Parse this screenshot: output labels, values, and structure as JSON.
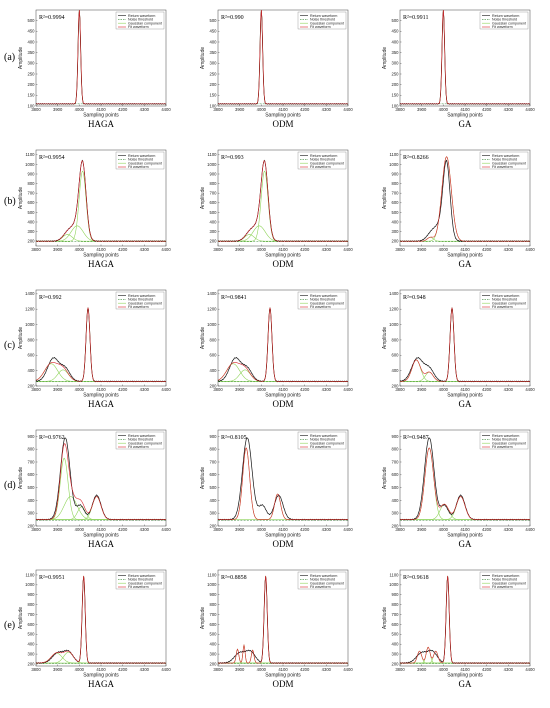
{
  "figure": {
    "rows": [
      "(a)",
      "(b)",
      "(c)",
      "(d)",
      "(e)"
    ],
    "methods": [
      "HAGA",
      "ODM",
      "GA"
    ],
    "xlabel": "Sampling points",
    "ylabel": "Amplitude",
    "legend": [
      "Return waveform",
      "Noise threshold",
      "Gaussian component",
      "Fit waveform"
    ],
    "colors": {
      "return": "#111111",
      "noise": "#3b8a3b",
      "gaussian": "#8fd45a",
      "fit": "#d9262c"
    }
  },
  "chart_data": [
    {
      "type": "line",
      "row": "(a)",
      "method": "HAGA",
      "r2": "R²=0.9994",
      "xlim": [
        3800,
        4400
      ],
      "xticks": [
        3800,
        3900,
        4000,
        4100,
        4200,
        4300,
        4400
      ],
      "ylim": [
        100,
        550
      ],
      "yticks": [
        100,
        150,
        200,
        250,
        300,
        350,
        400,
        450,
        500
      ],
      "noise": 110,
      "base": 110,
      "peaks": [
        {
          "mu": 4000,
          "amp": 440,
          "sigma": 6
        }
      ],
      "fit_peaks": [
        {
          "mu": 4000,
          "amp": 440,
          "sigma": 6
        }
      ]
    },
    {
      "type": "line",
      "row": "(a)",
      "method": "ODM",
      "r2": "R²=0.990",
      "xlim": [
        3800,
        4400
      ],
      "xticks": [
        3800,
        3900,
        4000,
        4100,
        4200,
        4300,
        4400
      ],
      "ylim": [
        100,
        550
      ],
      "yticks": [
        100,
        150,
        200,
        250,
        300,
        350,
        400,
        450,
        500
      ],
      "noise": 110,
      "base": 110,
      "peaks": [
        {
          "mu": 4000,
          "amp": 440,
          "sigma": 6
        }
      ],
      "fit_peaks": [
        {
          "mu": 4000,
          "amp": 440,
          "sigma": 6
        }
      ]
    },
    {
      "type": "line",
      "row": "(a)",
      "method": "GA",
      "r2": "R²=0.9911",
      "xlim": [
        3800,
        4400
      ],
      "xticks": [
        3800,
        3900,
        4000,
        4100,
        4200,
        4300,
        4400
      ],
      "ylim": [
        100,
        550
      ],
      "yticks": [
        100,
        150,
        200,
        250,
        300,
        350,
        400,
        450,
        500
      ],
      "noise": 110,
      "base": 110,
      "peaks": [
        {
          "mu": 4000,
          "amp": 440,
          "sigma": 6
        }
      ],
      "fit_peaks": [
        {
          "mu": 4000,
          "amp": 440,
          "sigma": 6
        }
      ]
    },
    {
      "type": "line",
      "row": "(b)",
      "method": "HAGA",
      "r2": "R²=0.9954",
      "xlim": [
        3800,
        4400
      ],
      "xticks": [
        3800,
        3900,
        4000,
        4100,
        4200,
        4300,
        4400
      ],
      "ylim": [
        150,
        1150
      ],
      "yticks": [
        200,
        300,
        400,
        500,
        600,
        700,
        800,
        900,
        1000,
        1100
      ],
      "noise": 195,
      "base": 200,
      "peaks": [
        {
          "mu": 3945,
          "amp": 70,
          "sigma": 22
        },
        {
          "mu": 3990,
          "amp": 160,
          "sigma": 28
        },
        {
          "mu": 4015,
          "amp": 730,
          "sigma": 16
        }
      ],
      "fit_peaks": [
        {
          "mu": 3945,
          "amp": 70,
          "sigma": 22
        },
        {
          "mu": 3990,
          "amp": 160,
          "sigma": 28
        },
        {
          "mu": 4015,
          "amp": 730,
          "sigma": 16
        }
      ]
    },
    {
      "type": "line",
      "row": "(b)",
      "method": "ODM",
      "r2": "R²=0.993",
      "xlim": [
        3800,
        4400
      ],
      "xticks": [
        3800,
        3900,
        4000,
        4100,
        4200,
        4300,
        4400
      ],
      "ylim": [
        150,
        1150
      ],
      "yticks": [
        200,
        300,
        400,
        500,
        600,
        700,
        800,
        900,
        1000,
        1100
      ],
      "noise": 195,
      "base": 200,
      "peaks": [
        {
          "mu": 3945,
          "amp": 70,
          "sigma": 22
        },
        {
          "mu": 3990,
          "amp": 160,
          "sigma": 28
        },
        {
          "mu": 4015,
          "amp": 730,
          "sigma": 16
        }
      ],
      "fit_peaks": [
        {
          "mu": 3945,
          "amp": 70,
          "sigma": 22
        },
        {
          "mu": 3990,
          "amp": 160,
          "sigma": 28
        },
        {
          "mu": 4015,
          "amp": 730,
          "sigma": 16
        }
      ]
    },
    {
      "type": "line",
      "row": "(b)",
      "method": "GA",
      "r2": "R²=0.8266",
      "xlim": [
        3800,
        4400
      ],
      "xticks": [
        3800,
        3900,
        4000,
        4100,
        4200,
        4300,
        4400
      ],
      "ylim": [
        150,
        1150
      ],
      "yticks": [
        200,
        300,
        400,
        500,
        600,
        700,
        800,
        900,
        1000,
        1100
      ],
      "noise": 195,
      "base": 200,
      "peaks": [
        {
          "mu": 3945,
          "amp": 70,
          "sigma": 22
        },
        {
          "mu": 3990,
          "amp": 160,
          "sigma": 28
        },
        {
          "mu": 4015,
          "amp": 730,
          "sigma": 16
        }
      ],
      "fit_peaks": [
        {
          "mu": 3940,
          "amp": 40,
          "sigma": 14
        },
        {
          "mu": 4015,
          "amp": 880,
          "sigma": 22
        }
      ]
    },
    {
      "type": "line",
      "row": "(c)",
      "method": "HAGA",
      "r2": "R²=0.992",
      "xlim": [
        3800,
        4400
      ],
      "xticks": [
        3800,
        3900,
        4000,
        4100,
        4200,
        4300,
        4400
      ],
      "ylim": [
        200,
        1450
      ],
      "yticks": [
        200,
        400,
        600,
        800,
        1000,
        1200,
        1400
      ],
      "noise": 255,
      "base": 260,
      "peaks": [
        {
          "mu": 3880,
          "amp": 300,
          "sigma": 26
        },
        {
          "mu": 3935,
          "amp": 160,
          "sigma": 22
        },
        {
          "mu": 4040,
          "amp": 960,
          "sigma": 9
        }
      ],
      "fit_peaks": [
        {
          "mu": 3870,
          "amp": 230,
          "sigma": 30
        },
        {
          "mu": 3925,
          "amp": 150,
          "sigma": 25
        },
        {
          "mu": 4040,
          "amp": 960,
          "sigma": 9
        }
      ]
    },
    {
      "type": "line",
      "row": "(c)",
      "method": "ODM",
      "r2": "R²=0.9841",
      "xlim": [
        3800,
        4400
      ],
      "xticks": [
        3800,
        3900,
        4000,
        4100,
        4200,
        4300,
        4400
      ],
      "ylim": [
        200,
        1450
      ],
      "yticks": [
        200,
        400,
        600,
        800,
        1000,
        1200,
        1400
      ],
      "noise": 255,
      "base": 260,
      "peaks": [
        {
          "mu": 3880,
          "amp": 300,
          "sigma": 26
        },
        {
          "mu": 3935,
          "amp": 160,
          "sigma": 22
        },
        {
          "mu": 4040,
          "amp": 960,
          "sigma": 9
        }
      ],
      "fit_peaks": [
        {
          "mu": 3870,
          "amp": 230,
          "sigma": 30
        },
        {
          "mu": 3925,
          "amp": 150,
          "sigma": 25
        },
        {
          "mu": 4040,
          "amp": 960,
          "sigma": 9
        }
      ]
    },
    {
      "type": "line",
      "row": "(c)",
      "method": "GA",
      "r2": "R²=0.948",
      "xlim": [
        3800,
        4400
      ],
      "xticks": [
        3800,
        3900,
        4000,
        4100,
        4200,
        4300,
        4400
      ],
      "ylim": [
        200,
        1450
      ],
      "yticks": [
        200,
        400,
        600,
        800,
        1000,
        1200,
        1400
      ],
      "noise": 255,
      "base": 260,
      "peaks": [
        {
          "mu": 3880,
          "amp": 300,
          "sigma": 26
        },
        {
          "mu": 3935,
          "amp": 160,
          "sigma": 22
        },
        {
          "mu": 4040,
          "amp": 960,
          "sigma": 9
        }
      ],
      "fit_peaks": [
        {
          "mu": 3875,
          "amp": 280,
          "sigma": 20
        },
        {
          "mu": 3935,
          "amp": 120,
          "sigma": 18
        },
        {
          "mu": 4040,
          "amp": 960,
          "sigma": 9
        }
      ]
    },
    {
      "type": "line",
      "row": "(d)",
      "method": "HAGA",
      "r2": "R²=0.9762",
      "xlim": [
        3800,
        4400
      ],
      "xticks": [
        3800,
        3900,
        4000,
        4100,
        4200,
        4300,
        4400
      ],
      "ylim": [
        200,
        950
      ],
      "yticks": [
        200,
        300,
        400,
        500,
        600,
        700,
        800,
        900
      ],
      "noise": 245,
      "base": 250,
      "peaks": [
        {
          "mu": 3935,
          "amp": 640,
          "sigma": 22
        },
        {
          "mu": 4005,
          "amp": 110,
          "sigma": 18
        },
        {
          "mu": 4080,
          "amp": 190,
          "sigma": 20
        }
      ],
      "fit_peaks": [
        {
          "mu": 3930,
          "amp": 480,
          "sigma": 18
        },
        {
          "mu": 3960,
          "amp": 180,
          "sigma": 30
        },
        {
          "mu": 4010,
          "amp": 100,
          "sigma": 18
        },
        {
          "mu": 4080,
          "amp": 180,
          "sigma": 20
        }
      ]
    },
    {
      "type": "line",
      "row": "(d)",
      "method": "ODM",
      "r2": "R²=0.8105",
      "xlim": [
        3800,
        4400
      ],
      "xticks": [
        3800,
        3900,
        4000,
        4100,
        4200,
        4300,
        4400
      ],
      "ylim": [
        200,
        950
      ],
      "yticks": [
        200,
        300,
        400,
        500,
        600,
        700,
        800,
        900
      ],
      "noise": 245,
      "base": 250,
      "peaks": [
        {
          "mu": 3935,
          "amp": 640,
          "sigma": 22
        },
        {
          "mu": 4005,
          "amp": 110,
          "sigma": 18
        },
        {
          "mu": 4080,
          "amp": 190,
          "sigma": 20
        }
      ],
      "fit_peaks": [
        {
          "mu": 3930,
          "amp": 560,
          "sigma": 16
        },
        {
          "mu": 4075,
          "amp": 200,
          "sigma": 14
        }
      ]
    },
    {
      "type": "line",
      "row": "(d)",
      "method": "GA",
      "r2": "R²=0.9487",
      "xlim": [
        3800,
        4400
      ],
      "xticks": [
        3800,
        3900,
        4000,
        4100,
        4200,
        4300,
        4400
      ],
      "ylim": [
        200,
        950
      ],
      "yticks": [
        200,
        300,
        400,
        500,
        600,
        700,
        800,
        900
      ],
      "noise": 245,
      "base": 250,
      "peaks": [
        {
          "mu": 3935,
          "amp": 640,
          "sigma": 22
        },
        {
          "mu": 4005,
          "amp": 110,
          "sigma": 18
        },
        {
          "mu": 4080,
          "amp": 190,
          "sigma": 20
        }
      ],
      "fit_peaks": [
        {
          "mu": 3935,
          "amp": 560,
          "sigma": 20
        },
        {
          "mu": 4005,
          "amp": 120,
          "sigma": 20
        },
        {
          "mu": 4080,
          "amp": 180,
          "sigma": 20
        }
      ]
    },
    {
      "type": "line",
      "row": "(e)",
      "method": "HAGA",
      "r2": "R²=0.9951",
      "xlim": [
        3800,
        4400
      ],
      "xticks": [
        3800,
        3900,
        4000,
        4100,
        4200,
        4300,
        4400
      ],
      "ylim": [
        180,
        1150
      ],
      "yticks": [
        200,
        300,
        400,
        500,
        600,
        700,
        800,
        900,
        1000,
        1100
      ],
      "noise": 205,
      "base": 210,
      "peaks": [
        {
          "mu": 3900,
          "amp": 100,
          "sigma": 25
        },
        {
          "mu": 3950,
          "amp": 110,
          "sigma": 22
        },
        {
          "mu": 4020,
          "amp": 880,
          "sigma": 7
        }
      ],
      "fit_peaks": [
        {
          "mu": 3895,
          "amp": 100,
          "sigma": 25
        },
        {
          "mu": 3950,
          "amp": 110,
          "sigma": 22
        },
        {
          "mu": 4020,
          "amp": 880,
          "sigma": 7
        }
      ]
    },
    {
      "type": "line",
      "row": "(e)",
      "method": "ODM",
      "r2": "R²=0.8858",
      "xlim": [
        3800,
        4400
      ],
      "xticks": [
        3800,
        3900,
        4000,
        4100,
        4200,
        4300,
        4400
      ],
      "ylim": [
        180,
        1150
      ],
      "yticks": [
        200,
        300,
        400,
        500,
        600,
        700,
        800,
        900,
        1000,
        1100
      ],
      "noise": 205,
      "base": 210,
      "peaks": [
        {
          "mu": 3900,
          "amp": 100,
          "sigma": 25
        },
        {
          "mu": 3950,
          "amp": 110,
          "sigma": 22
        },
        {
          "mu": 4020,
          "amp": 880,
          "sigma": 7
        }
      ],
      "fit_peaks": [
        {
          "mu": 3890,
          "amp": 140,
          "sigma": 6
        },
        {
          "mu": 3920,
          "amp": 180,
          "sigma": 5
        },
        {
          "mu": 3960,
          "amp": 130,
          "sigma": 6
        },
        {
          "mu": 4020,
          "amp": 880,
          "sigma": 7
        }
      ]
    },
    {
      "type": "line",
      "row": "(e)",
      "method": "GA",
      "r2": "R²=0.9618",
      "xlim": [
        3800,
        4400
      ],
      "xticks": [
        3800,
        3900,
        4000,
        4100,
        4200,
        4300,
        4400
      ],
      "ylim": [
        180,
        1150
      ],
      "yticks": [
        200,
        300,
        400,
        500,
        600,
        700,
        800,
        900,
        1000,
        1100
      ],
      "noise": 205,
      "base": 210,
      "peaks": [
        {
          "mu": 3900,
          "amp": 100,
          "sigma": 25
        },
        {
          "mu": 3950,
          "amp": 110,
          "sigma": 22
        },
        {
          "mu": 4020,
          "amp": 880,
          "sigma": 7
        }
      ],
      "fit_peaks": [
        {
          "mu": 3890,
          "amp": 120,
          "sigma": 10
        },
        {
          "mu": 3930,
          "amp": 160,
          "sigma": 9
        },
        {
          "mu": 3965,
          "amp": 120,
          "sigma": 10
        },
        {
          "mu": 4020,
          "amp": 880,
          "sigma": 7
        }
      ]
    }
  ]
}
